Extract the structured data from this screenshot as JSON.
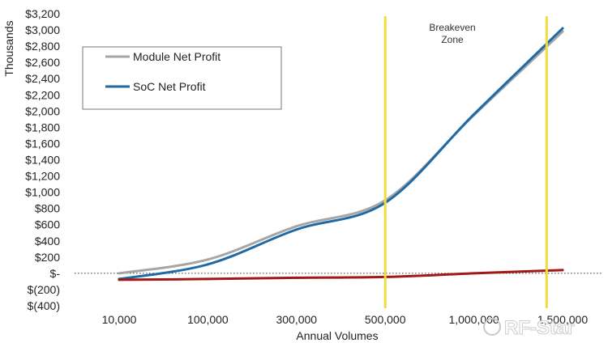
{
  "chart_data": {
    "type": "line",
    "title": "",
    "xlabel": "Annual Volumes",
    "ylabel": "Thousands",
    "categories": [
      "10,000",
      "100,000",
      "300,000",
      "500,000",
      "1,000,000",
      "1,500,000"
    ],
    "ylim": [
      -400,
      3200
    ],
    "yticks": [
      {
        "value": 3200,
        "label": "$3,200"
      },
      {
        "value": 3000,
        "label": "$3,000"
      },
      {
        "value": 2800,
        "label": "$2,800"
      },
      {
        "value": 2600,
        "label": "$2,600"
      },
      {
        "value": 2400,
        "label": "$2,400"
      },
      {
        "value": 2200,
        "label": "$2,200"
      },
      {
        "value": 2000,
        "label": "$2,000"
      },
      {
        "value": 1800,
        "label": "$1,800"
      },
      {
        "value": 1600,
        "label": "$1,600"
      },
      {
        "value": 1400,
        "label": "$1,400"
      },
      {
        "value": 1200,
        "label": "$1,200"
      },
      {
        "value": 1000,
        "label": "$1,000"
      },
      {
        "value": 800,
        "label": "$800"
      },
      {
        "value": 600,
        "label": "$600"
      },
      {
        "value": 400,
        "label": "$400"
      },
      {
        "value": 200,
        "label": "$200"
      },
      {
        "value": 0,
        "label": "$-"
      },
      {
        "value": -200,
        "label": "$(200)"
      },
      {
        "value": -400,
        "label": "$(400)"
      }
    ],
    "series": [
      {
        "name": "Module Net Profit",
        "color": "#a6a6a6",
        "show_in_legend": true,
        "values": [
          0,
          170,
          580,
          900,
          1950,
          2980
        ]
      },
      {
        "name": "SoC Net Profit",
        "color": "#1f6aa5",
        "show_in_legend": true,
        "values": [
          -70,
          110,
          540,
          870,
          1960,
          3020
        ]
      },
      {
        "name": "",
        "color": "#a01818",
        "show_in_legend": false,
        "values": [
          -80,
          -70,
          -55,
          -45,
          0,
          40
        ]
      }
    ],
    "reference_lines": [
      {
        "type": "horizontal",
        "y": 0,
        "style": "dotted",
        "color": "#333333"
      },
      {
        "type": "vertical",
        "x_category_position": 3.0,
        "color": "#f2dc3c"
      },
      {
        "type": "vertical",
        "x_category_position": 4.82,
        "color": "#f2dc3c"
      }
    ],
    "annotations": [
      {
        "text_lines": [
          "Breakeven",
          "Zone"
        ]
      }
    ],
    "legend_position": "top-left",
    "grid": false
  },
  "watermark": {
    "text": "RF-Star"
  }
}
